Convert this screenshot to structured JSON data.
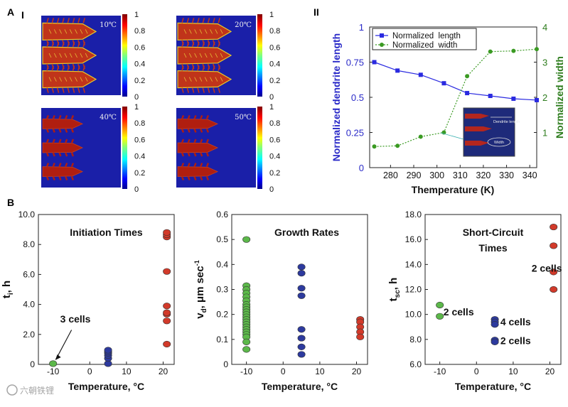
{
  "figure": {
    "label_A": "A",
    "label_AI": "I",
    "label_AII": "II",
    "label_B": "B",
    "watermark": "六朝铁锂"
  },
  "simulations": {
    "colorbar_ticks": [
      "1",
      "0.8",
      "0.6",
      "0.4",
      "0.2",
      "0"
    ],
    "panels": [
      {
        "temp": "10℃",
        "style": "fine"
      },
      {
        "temp": "20℃",
        "style": "fine"
      },
      {
        "temp": "40℃",
        "style": "thick"
      },
      {
        "temp": "50℃",
        "style": "thick"
      }
    ]
  },
  "chart_data": [
    {
      "id": "dendrite",
      "type": "line",
      "title": "",
      "xlabel": "Themperature (K)",
      "ylabel_left": "Normalized dendrite length",
      "ylabel_right": "Normalized width",
      "xlim": [
        271,
        343
      ],
      "ylim_left": [
        0,
        1
      ],
      "ylim_right": [
        0,
        4
      ],
      "xticks": [
        280,
        290,
        300,
        310,
        320,
        330,
        340
      ],
      "yticks_left": [
        "0.25",
        "0.5",
        "0.75",
        "1"
      ],
      "yticks_right": [
        "1",
        "2",
        "3",
        "4"
      ],
      "left_color": "#2a2ac8",
      "right_color": "#2e7d1e",
      "series": [
        {
          "name": "Normalized  length",
          "axis": "left",
          "color": "#2a2ae0",
          "x": [
            273,
            283,
            293,
            303,
            313,
            323,
            333,
            343
          ],
          "y": [
            0.75,
            0.69,
            0.66,
            0.6,
            0.53,
            0.51,
            0.49,
            0.48
          ]
        },
        {
          "name": "Normalized  width",
          "axis": "right",
          "color": "#3a9a22",
          "x": [
            273,
            283,
            293,
            303,
            313,
            323,
            333,
            343
          ],
          "y": [
            0.6,
            0.62,
            0.88,
            1.0,
            2.6,
            3.3,
            3.32,
            3.37
          ]
        }
      ],
      "inset_labels": [
        "Dendrite length",
        "Width"
      ]
    },
    {
      "id": "initiation",
      "type": "scatter",
      "title": "Initiation Times",
      "xlabel": "Temperature, °C",
      "ylabel": "t, h",
      "ylabel_sub": "i",
      "xlim": [
        -14,
        23
      ],
      "ylim": [
        0,
        10
      ],
      "xticks": [
        "-10",
        "0",
        "10",
        "20"
      ],
      "yticks": [
        "0",
        "2.0",
        "4.0",
        "6.0",
        "8.0",
        "10.0"
      ],
      "annotation": "3 cells",
      "series": [
        {
          "name": "-10 °C",
          "color": "#5cb84a",
          "x": [
            -10
          ],
          "y": [
            0.05
          ]
        },
        {
          "name": "5 °C",
          "color": "#2d3a9e",
          "x": [
            5,
            5,
            5,
            5,
            5,
            5
          ],
          "y": [
            0.05,
            0.4,
            0.6,
            0.75,
            0.85,
            0.95
          ]
        },
        {
          "name": "21 °C",
          "color": "#d23a2a",
          "x": [
            21,
            21,
            21,
            21,
            21,
            21,
            21,
            21,
            21
          ],
          "y": [
            1.35,
            2.9,
            3.35,
            3.45,
            3.9,
            6.2,
            8.5,
            8.65,
            8.8
          ]
        }
      ]
    },
    {
      "id": "growth",
      "type": "scatter",
      "title": "Growth Rates",
      "xlabel": "Temperature, °C",
      "ylabel": "v , μm sec",
      "ylabel_sub": "d",
      "ylabel_sup": "-1",
      "xlim": [
        -14,
        23
      ],
      "ylim": [
        0,
        0.6
      ],
      "xticks": [
        "-10",
        "0",
        "10",
        "20"
      ],
      "yticks": [
        "0",
        "0.1",
        "0.2",
        "0.3",
        "0.4",
        "0.5",
        "0.6"
      ],
      "series": [
        {
          "name": "-10 °C",
          "color": "#5cb84a",
          "x": [
            -10,
            -10,
            -10,
            -10,
            -10,
            -10,
            -10,
            -10,
            -10,
            -10,
            -10,
            -10,
            -10,
            -10,
            -10,
            -10,
            -10,
            -10,
            -10,
            -10,
            -10,
            -10
          ],
          "y": [
            0.5,
            0.315,
            0.3,
            0.285,
            0.27,
            0.255,
            0.24,
            0.23,
            0.22,
            0.21,
            0.2,
            0.19,
            0.18,
            0.17,
            0.16,
            0.15,
            0.14,
            0.13,
            0.12,
            0.11,
            0.09,
            0.06
          ]
        },
        {
          "name": "5 °C",
          "color": "#2d3a9e",
          "x": [
            5,
            5,
            5,
            5,
            5,
            5,
            5,
            5
          ],
          "y": [
            0.39,
            0.365,
            0.305,
            0.275,
            0.14,
            0.105,
            0.07,
            0.04
          ]
        },
        {
          "name": "21 °C",
          "color": "#d23a2a",
          "x": [
            21,
            21,
            21,
            21,
            21
          ],
          "y": [
            0.18,
            0.17,
            0.15,
            0.13,
            0.11
          ]
        }
      ]
    },
    {
      "id": "shortcircuit",
      "type": "scatter",
      "title": "Short-Circuit",
      "title2": "Times",
      "xlabel": "Temperature, °C",
      "ylabel": "t  , h",
      "ylabel_sub": "sc",
      "xlim": [
        -14,
        23
      ],
      "ylim": [
        6,
        18
      ],
      "xticks": [
        "-10",
        "0",
        "10",
        "20"
      ],
      "yticks": [
        "6.0",
        "8.0",
        "10.0",
        "12.0",
        "14.0",
        "16.0",
        "18.0"
      ],
      "annotations": [
        {
          "text": "2 cells",
          "x": -9,
          "y": 10.2
        },
        {
          "text": "4 cells",
          "x": 6.5,
          "y": 9.4
        },
        {
          "text": "2 cells",
          "x": 6.5,
          "y": 7.9
        },
        {
          "text": "2 cells",
          "x": 15,
          "y": 13.7
        }
      ],
      "series": [
        {
          "name": "-10 °C",
          "color": "#5cb84a",
          "x": [
            -10,
            -10
          ],
          "y": [
            10.75,
            9.85
          ]
        },
        {
          "name": "5 °C",
          "color": "#2d3a9e",
          "x": [
            5,
            5,
            5,
            5,
            5
          ],
          "y": [
            9.6,
            9.4,
            9.2,
            7.95,
            7.8
          ]
        },
        {
          "name": "21 °C",
          "color": "#d23a2a",
          "x": [
            21,
            21,
            21,
            21
          ],
          "y": [
            17.0,
            15.5,
            13.4,
            12.0
          ]
        }
      ]
    }
  ]
}
